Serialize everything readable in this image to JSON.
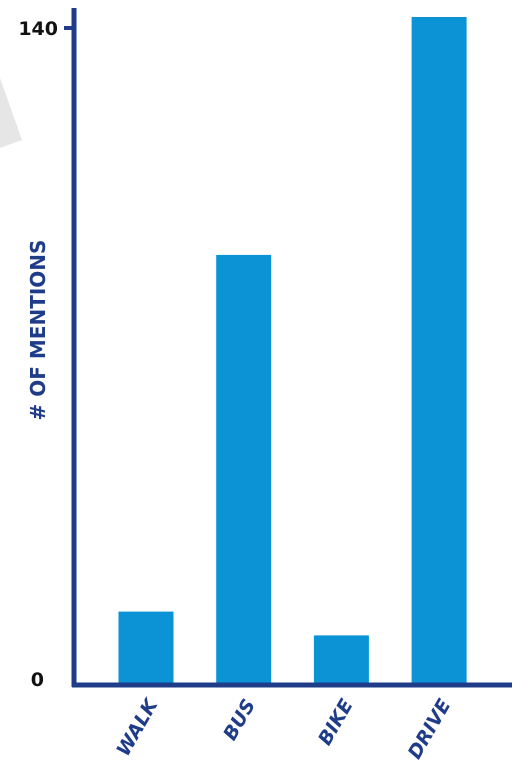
{
  "chart_data": {
    "type": "bar",
    "categories": [
      "WALK",
      "BUS",
      "BIKE",
      "DRIVE"
    ],
    "values": [
      15,
      90,
      10,
      140
    ],
    "title": "",
    "xlabel": "",
    "ylabel": "# OF MENTIONS",
    "ylim": [
      0,
      140
    ],
    "yticks": [
      "0",
      "140"
    ],
    "grid": false,
    "colors": {
      "bar": "#0b93d6",
      "axis": "#1f3c88",
      "text": "#1f3c88",
      "tick_text": "#111111",
      "decor": "#e6e6e6"
    }
  }
}
